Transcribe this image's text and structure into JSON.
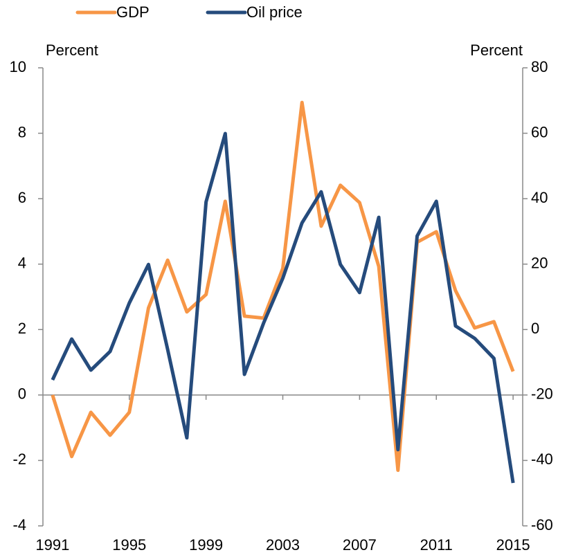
{
  "chart_data": {
    "type": "line",
    "x": [
      1991,
      1992,
      1993,
      1994,
      1995,
      1996,
      1997,
      1998,
      1999,
      2000,
      2001,
      2002,
      2003,
      2004,
      2005,
      2006,
      2007,
      2008,
      2009,
      2010,
      2011,
      2012,
      2013,
      2014,
      2015
    ],
    "series": [
      {
        "name": "GDP",
        "color": "#f79646",
        "values": [
          0,
          -1.88,
          -0.53,
          -1.23,
          -0.53,
          2.66,
          4.12,
          2.54,
          3.07,
          5.92,
          2.41,
          2.35,
          3.87,
          8.94,
          5.16,
          6.41,
          5.88,
          3.93,
          -2.3,
          4.67,
          4.99,
          3.19,
          2.05,
          2.24,
          0.72
        ]
      },
      {
        "name": "Oil price",
        "color": "#254b7c",
        "axis": "y2",
        "values": [
          -15.4,
          -2.9,
          -12.4,
          -6.7,
          8.1,
          19.9,
          -6.1,
          -33.1,
          39.0,
          59.9,
          -13.7,
          2.0,
          15.7,
          32.6,
          42.1,
          19.9,
          11.3,
          34.3,
          -36.7,
          28.6,
          39.2,
          1.1,
          -2.7,
          -8.8,
          -46.9
        ]
      }
    ],
    "ylabel": "Percent",
    "y2label": "Percent",
    "xlim": [
      1990.5,
      2015.5
    ],
    "xticks": [
      1991,
      1995,
      1999,
      2003,
      2007,
      2011,
      2015
    ],
    "ylim": [
      -4,
      10
    ],
    "yticks": [
      -4,
      -2,
      0,
      2,
      4,
      6,
      8,
      10
    ],
    "y2lim": [
      -60,
      80
    ],
    "y2ticks": [
      -60,
      -40,
      -20,
      0,
      20,
      40,
      60,
      80
    ],
    "legend": "top"
  }
}
